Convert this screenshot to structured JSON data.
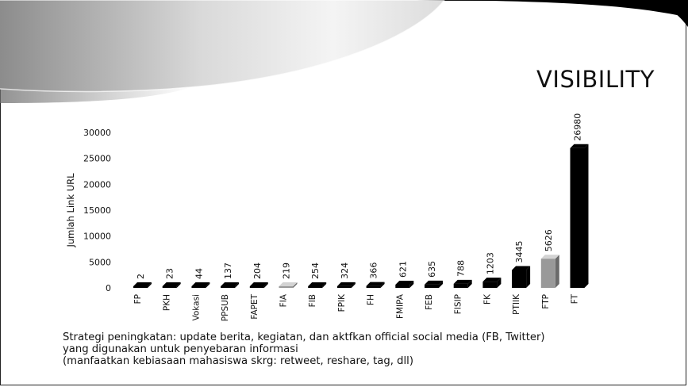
{
  "slide": {
    "title": "VISIBILITY",
    "caption": [
      "Strategi peningkatan: update berita, kegiatan, dan aktfkan official social media (FB, Twitter)",
      "yang digunakan untuk penyebaran informasi",
      "(manfaatkan kebiasaan mahasiswa skrg: retweet, reshare, tag, dll)"
    ]
  },
  "chart_data": {
    "type": "bar",
    "title": "",
    "xlabel": "",
    "ylabel": "Jumlah Link URL",
    "ylim": [
      0,
      30000
    ],
    "yticks": [
      0,
      5000,
      10000,
      15000,
      20000,
      25000,
      30000
    ],
    "grid": false,
    "legend": "none",
    "categories": [
      "FP",
      "PKH",
      "Vokasi",
      "PPSUB",
      "FAPET",
      "FIA",
      "FIB",
      "FPIK",
      "FH",
      "FMIPA",
      "FEB",
      "FISIP",
      "FK",
      "PTIIK",
      "FTP",
      "FT"
    ],
    "values": [
      2,
      23,
      44,
      137,
      204,
      219,
      254,
      324,
      366,
      621,
      635,
      788,
      1203,
      3445,
      5626,
      26980
    ],
    "value_labels": [
      "2",
      "23",
      "44",
      "137",
      "204",
      "219",
      "254",
      "324",
      "366",
      "621",
      "635",
      "788",
      "1203",
      "3445",
      "5626",
      "26980"
    ],
    "bar_colors": [
      "#000000",
      "#000000",
      "#000000",
      "#000000",
      "#000000",
      "#999999",
      "#000000",
      "#000000",
      "#000000",
      "#000000",
      "#000000",
      "#000000",
      "#000000",
      "#000000",
      "#999999",
      "#000000"
    ]
  }
}
